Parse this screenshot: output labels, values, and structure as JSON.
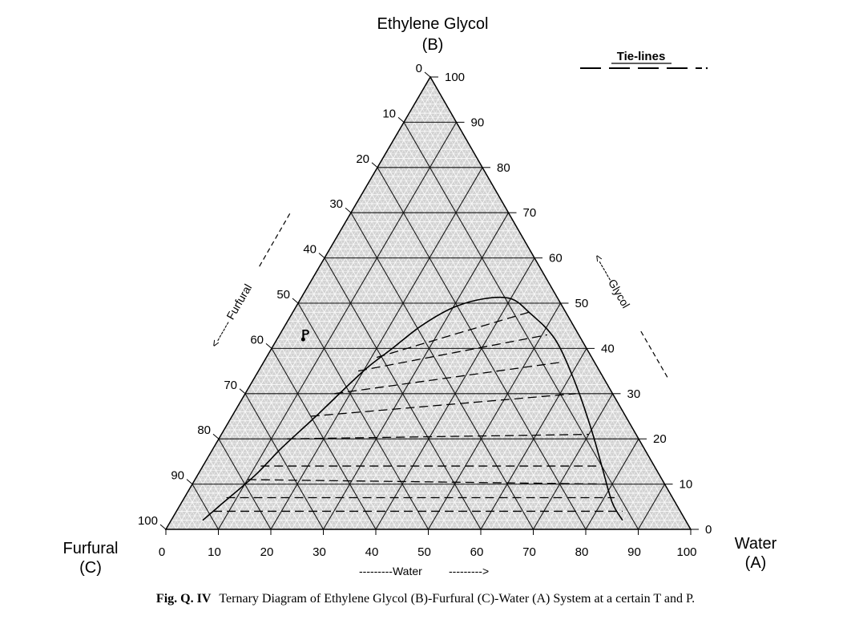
{
  "apex_top": {
    "name": "Ethylene Glycol",
    "code": "(B)"
  },
  "apex_left": {
    "name": "Furfural",
    "code": "(C)"
  },
  "apex_right": {
    "name": "Water",
    "code": "(A)"
  },
  "legend": {
    "label": "Tie-lines"
  },
  "axes": {
    "water": {
      "label": "---------Water",
      "arrow": "--------->",
      "ticks": [
        "0",
        "10",
        "20",
        "30",
        "40",
        "50",
        "60",
        "70",
        "80",
        "90",
        "100"
      ]
    },
    "glycol": {
      "label": "<------Glycol",
      "ticks": [
        "0",
        "10",
        "20",
        "30",
        "40",
        "50",
        "60",
        "70",
        "80",
        "90",
        "100"
      ]
    },
    "furfural": {
      "label": "<------ Furfural",
      "ticks": [
        "0",
        "10",
        "20",
        "30",
        "40",
        "50",
        "60",
        "70",
        "80",
        "90",
        "100"
      ]
    }
  },
  "point_label": "P",
  "caption": {
    "label": "Fig. Q. IV",
    "text": "Ternary Diagram of Ethylene Glycol (B)-Furfural (C)-Water (A) System at a certain T and P."
  },
  "chart_data": {
    "type": "ternary",
    "components": [
      "Water (A)",
      "Ethylene Glycol (B)",
      "Furfural (C)"
    ],
    "grid_major_step": 10,
    "grid_minor_step": 2,
    "binodal_curve": [
      {
        "water": 6,
        "glycol": 2
      },
      {
        "water": 8,
        "glycol": 6
      },
      {
        "water": 11,
        "glycol": 12
      },
      {
        "water": 13,
        "glycol": 18
      },
      {
        "water": 16,
        "glycol": 25
      },
      {
        "water": 20,
        "glycol": 35
      },
      {
        "water": 23,
        "glycol": 40
      },
      {
        "water": 26,
        "glycol": 45
      },
      {
        "water": 30,
        "glycol": 49
      },
      {
        "water": 35,
        "glycol": 51
      },
      {
        "water": 40,
        "glycol": 51
      },
      {
        "water": 45,
        "glycol": 48
      },
      {
        "water": 53,
        "glycol": 42
      },
      {
        "water": 62,
        "glycol": 32
      },
      {
        "water": 70,
        "glycol": 22
      },
      {
        "water": 76,
        "glycol": 14
      },
      {
        "water": 82,
        "glycol": 6
      },
      {
        "water": 86,
        "glycol": 2
      }
    ],
    "tie_lines": [
      {
        "left": {
          "water": 7,
          "glycol": 4
        },
        "right": {
          "water": 85,
          "glycol": 4
        }
      },
      {
        "left": {
          "water": 8,
          "glycol": 7
        },
        "right": {
          "water": 82,
          "glycol": 7
        }
      },
      {
        "left": {
          "water": 10,
          "glycol": 11
        },
        "right": {
          "water": 79,
          "glycol": 10
        }
      },
      {
        "left": {
          "water": 11,
          "glycol": 14
        },
        "right": {
          "water": 76,
          "glycol": 14
        }
      },
      {
        "left": {
          "water": 13,
          "glycol": 20
        },
        "right": {
          "water": 70,
          "glycol": 21
        }
      },
      {
        "left": {
          "water": 15,
          "glycol": 25
        },
        "right": {
          "water": 63,
          "glycol": 30
        }
      },
      {
        "left": {
          "water": 17,
          "glycol": 30
        },
        "right": {
          "water": 57,
          "glycol": 37
        }
      },
      {
        "left": {
          "water": 19,
          "glycol": 35
        },
        "right": {
          "water": 51,
          "glycol": 43
        }
      },
      {
        "left": {
          "water": 21,
          "glycol": 38
        },
        "right": {
          "water": 45,
          "glycol": 48
        }
      }
    ],
    "point_P": {
      "water": 5,
      "glycol": 42
    }
  }
}
